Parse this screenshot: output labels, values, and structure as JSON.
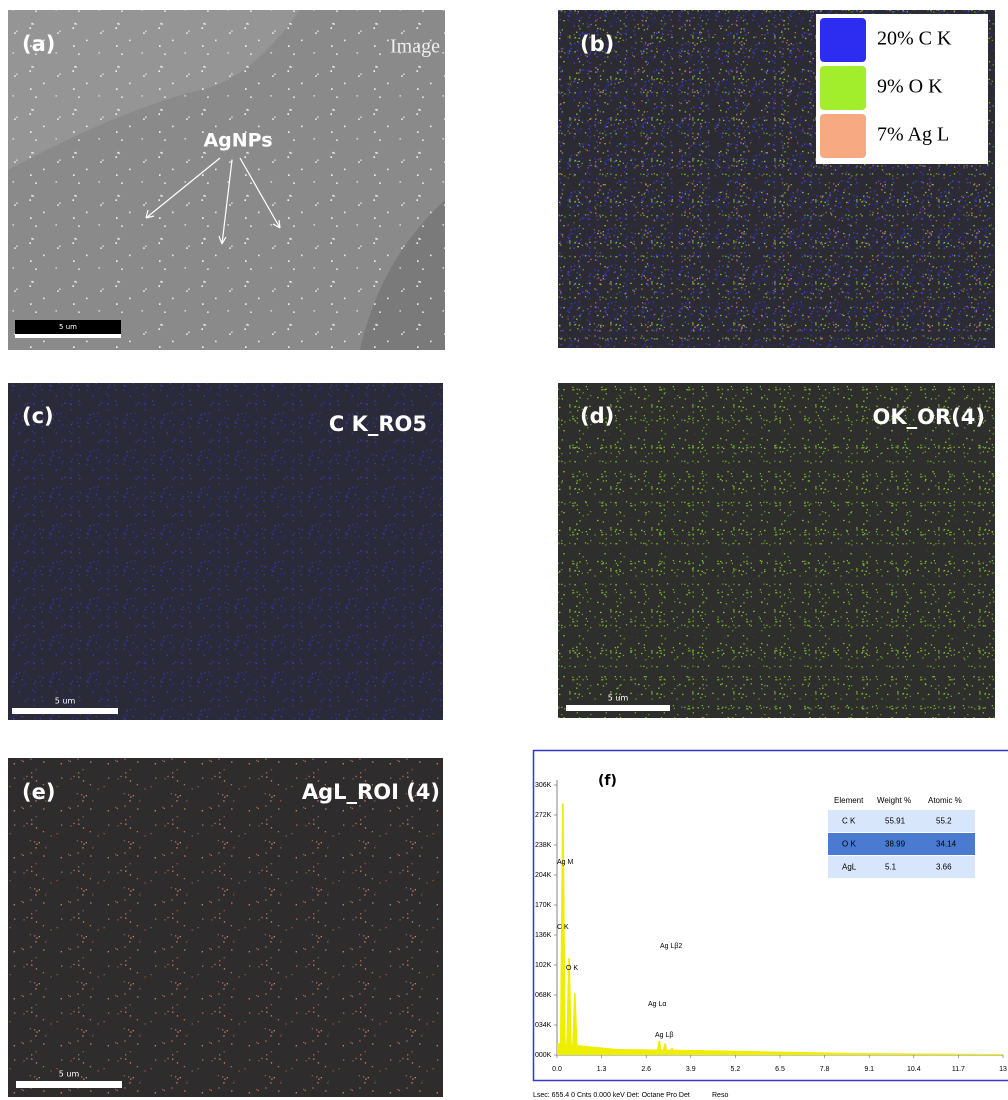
{
  "panels": [
    {
      "label": "(a)",
      "caption": "Image",
      "annotation": "AgNPs",
      "scale_bar": "5 um"
    },
    {
      "label": "(b)",
      "legend": [
        {
          "text": "20% C K",
          "color": "#2d2df2"
        },
        {
          "text": "9% O K",
          "color": "#a2ee2c"
        },
        {
          "text": "7% Ag L",
          "color": "#f7a982"
        }
      ]
    },
    {
      "label": "(c)",
      "caption": "C K_RO5",
      "scale_bar": "5 um"
    },
    {
      "label": "(d)",
      "caption": "OK_OR(4)",
      "scale_bar": "5 um"
    },
    {
      "label": "(e)",
      "caption": "AgL_ROI (4)",
      "scale_bar": "5 um"
    },
    {
      "label": "(f)"
    }
  ],
  "spectrum": {
    "xlim": [
      0,
      13
    ],
    "xticks": [
      {
        "value": 0,
        "label": "0.0"
      },
      1.3,
      2.6,
      3.9,
      5.2,
      6.5,
      7.8,
      9.1,
      10.4,
      11.7,
      {
        "value": 13,
        "label": "13"
      }
    ],
    "ylim": [
      0,
      306000
    ],
    "yticks": [
      {
        "value": 0,
        "label": "000K"
      },
      {
        "value": 34000,
        "label": "034K"
      },
      {
        "value": 68000,
        "label": "068K"
      },
      {
        "value": 102000,
        "label": "102K"
      },
      {
        "value": 136000,
        "label": "136K"
      },
      {
        "value": 170000,
        "label": "170K"
      },
      {
        "value": 204000,
        "label": "204K"
      },
      {
        "value": 238000,
        "label": "238K"
      },
      {
        "value": 272000,
        "label": "272K"
      },
      {
        "value": 306000,
        "label": "306K"
      }
    ],
    "color": "#eeee00",
    "peaks": [
      {
        "energy": 0.17,
        "counts": 285000
      },
      {
        "energy": 0.35,
        "counts": 110000
      },
      {
        "energy": 0.52,
        "counts": 70000
      },
      {
        "energy": 2.98,
        "counts": 16000
      },
      {
        "energy": 3.15,
        "counts": 13000
      },
      {
        "energy": 3.35,
        "counts": 8000
      }
    ],
    "peak_labels": [
      "Ag M",
      "C K",
      "O K",
      "Ag Lβ2",
      "Ag Lα",
      "Ag Lβ"
    ],
    "table": {
      "header": [
        "Element",
        "Weight %",
        "Atomic %"
      ],
      "rows": [
        [
          "C K",
          "55.91",
          "55.2"
        ],
        [
          "O K",
          "38.99",
          "34.14"
        ],
        [
          "AgL",
          "5.1",
          "3.66"
        ]
      ]
    },
    "footer": "Lsec: 655.4 0 Cnts 0.000 keV Det: Octane Pro Det",
    "footer_right": "Reso"
  }
}
